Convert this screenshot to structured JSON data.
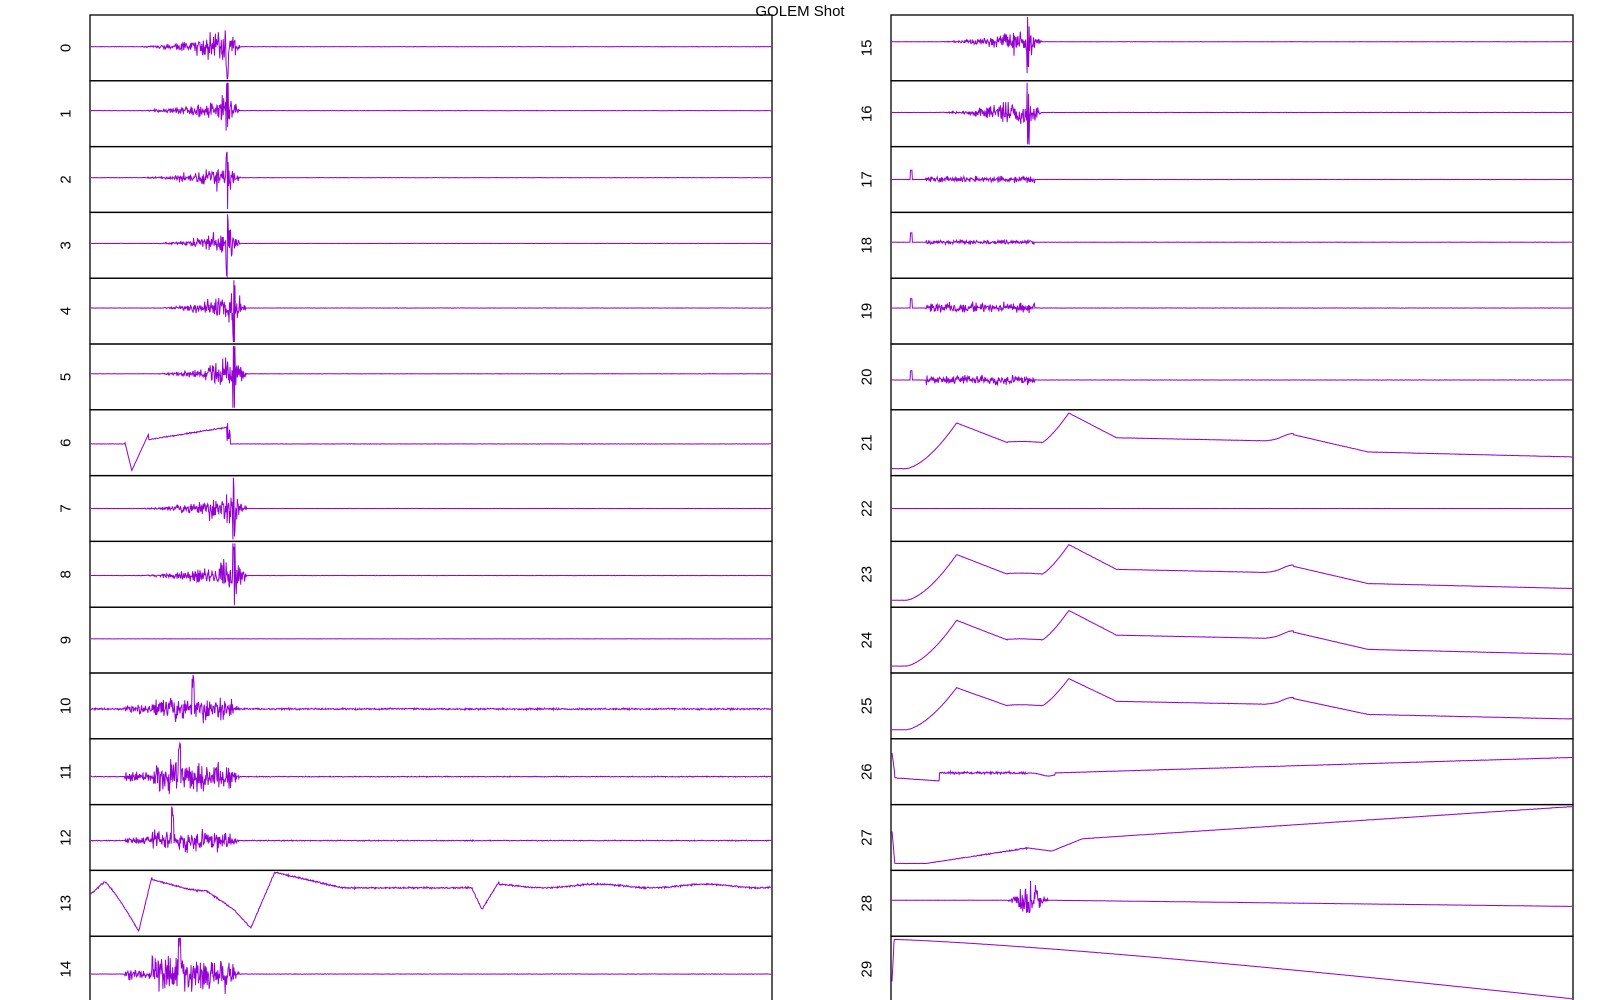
{
  "title": "GOLEM Shot",
  "trace_color": "#9400d3",
  "frame_color": "#000000",
  "chart_data": {
    "type": "line",
    "title": "GOLEM Shot",
    "grid": false,
    "legend": "none",
    "xlabel": "",
    "ylabel": "",
    "columns": [
      [
        "0",
        "1",
        "2",
        "3",
        "4",
        "5",
        "6",
        "7",
        "8",
        "9",
        "10",
        "11",
        "12",
        "13",
        "14"
      ],
      [
        "15",
        "16",
        "17",
        "18",
        "19",
        "20",
        "21",
        "22",
        "23",
        "24",
        "25",
        "26",
        "27",
        "28",
        "29"
      ]
    ],
    "panels": [
      {
        "label": "0",
        "kind": "burst",
        "base": 0.48,
        "start": 0.05,
        "peak": 0.2,
        "amp": 0.45,
        "spike": 0.2
      },
      {
        "label": "1",
        "kind": "burst",
        "base": 0.45,
        "start": 0.05,
        "peak": 0.2,
        "amp": 0.38,
        "spike": 0.2
      },
      {
        "label": "2",
        "kind": "burst",
        "base": 0.47,
        "start": 0.05,
        "peak": 0.2,
        "amp": 0.35,
        "spike": 0.2
      },
      {
        "label": "3",
        "kind": "burst",
        "base": 0.47,
        "start": 0.08,
        "peak": 0.2,
        "amp": 0.4,
        "spike": 0.2
      },
      {
        "label": "4",
        "kind": "burst",
        "base": 0.45,
        "start": 0.08,
        "peak": 0.21,
        "amp": 0.42,
        "spike": 0.21
      },
      {
        "label": "5",
        "kind": "burst",
        "base": 0.45,
        "start": 0.08,
        "peak": 0.21,
        "amp": 0.44,
        "spike": 0.21
      },
      {
        "label": "6",
        "kind": "ch6",
        "base": 0.52
      },
      {
        "label": "7",
        "kind": "burst",
        "base": 0.5,
        "start": 0.05,
        "peak": 0.21,
        "amp": 0.45,
        "spike": 0.21
      },
      {
        "label": "8",
        "kind": "burst",
        "base": 0.52,
        "start": 0.05,
        "peak": 0.21,
        "amp": 0.5,
        "spike": 0.21
      },
      {
        "label": "9",
        "kind": "flat",
        "base": 0.48
      },
      {
        "label": "10",
        "kind": "wide",
        "base": 0.55,
        "start": 0.05,
        "peak": 0.15,
        "amp": 0.5,
        "spike": 0.15,
        "noise": 0.02
      },
      {
        "label": "11",
        "kind": "wide",
        "base": 0.58,
        "start": 0.05,
        "peak": 0.14,
        "amp": 0.6,
        "spike": 0.13,
        "noise": 0.01
      },
      {
        "label": "12",
        "kind": "wide",
        "base": 0.55,
        "start": 0.05,
        "peak": 0.14,
        "amp": 0.45,
        "spike": 0.12,
        "noise": 0.01
      },
      {
        "label": "13",
        "kind": "ch13",
        "base": 0.25
      },
      {
        "label": "14",
        "kind": "wide",
        "base": 0.58,
        "start": 0.05,
        "peak": 0.13,
        "amp": 0.7,
        "spike": 0.13,
        "noise": 0.005
      },
      {
        "label": "15",
        "kind": "burst",
        "base": 0.4,
        "start": 0.05,
        "peak": 0.2,
        "amp": 0.4,
        "spike": 0.2
      },
      {
        "label": "16",
        "kind": "burst",
        "base": 0.48,
        "start": 0.05,
        "peak": 0.2,
        "amp": 0.45,
        "spike": 0.2
      },
      {
        "label": "17",
        "kind": "small",
        "base": 0.5,
        "amp": 0.12
      },
      {
        "label": "18",
        "kind": "small",
        "base": 0.45,
        "amp": 0.08
      },
      {
        "label": "19",
        "kind": "small",
        "base": 0.45,
        "amp": 0.2
      },
      {
        "label": "20",
        "kind": "small",
        "base": 0.55,
        "amp": 0.18
      },
      {
        "label": "21",
        "kind": "hump",
        "base": 0.95,
        "floor": 0.35
      },
      {
        "label": "22",
        "kind": "flat",
        "base": 0.5
      },
      {
        "label": "23",
        "kind": "hump",
        "base": 0.95,
        "floor": 0.35
      },
      {
        "label": "24",
        "kind": "hump",
        "base": 0.95,
        "floor": 0.35
      },
      {
        "label": "25",
        "kind": "hump",
        "base": 0.8,
        "floor": 0.45
      },
      {
        "label": "26",
        "kind": "ch26",
        "base": 0.6
      },
      {
        "label": "27",
        "kind": "ch27",
        "base": 0.9
      },
      {
        "label": "28",
        "kind": "ch28",
        "base": 0.45
      },
      {
        "label": "29",
        "kind": "ch29",
        "base": 0.05
      }
    ]
  }
}
